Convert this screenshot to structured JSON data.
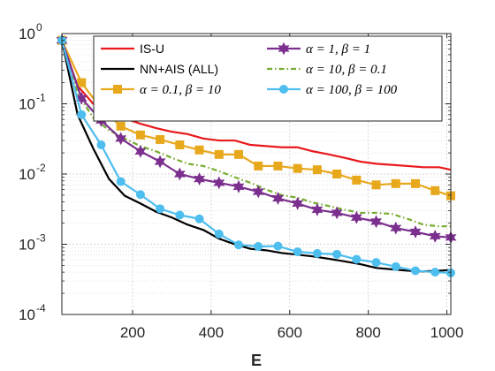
{
  "chart_data": {
    "type": "line",
    "title": "",
    "xlabel": "E",
    "ylabel": "",
    "y_scale": "log",
    "xlim": [
      20,
      1010
    ],
    "ylim": [
      0.0001,
      1
    ],
    "xticks": [
      200,
      400,
      600,
      800,
      1000
    ],
    "xtick_labels": [
      "200",
      "400",
      "600",
      "800",
      "1000"
    ],
    "yticks": [
      0.0001,
      0.001,
      0.01,
      0.1,
      1
    ],
    "ytick_labels": [
      {
        "base": "10",
        "exp": "-4"
      },
      {
        "base": "10",
        "exp": "-3"
      },
      {
        "base": "10",
        "exp": "-2"
      },
      {
        "base": "10",
        "exp": "-1"
      },
      {
        "base": "10",
        "exp": "0"
      }
    ],
    "grid": true,
    "legend_position": "top-right",
    "series": [
      {
        "name": "IS-U",
        "color": "#e8181c",
        "marker": "none",
        "x": [
          20,
          60,
          100,
          140,
          180,
          220,
          260,
          300,
          340,
          380,
          420,
          460,
          500,
          540,
          580,
          620,
          660,
          700,
          740,
          780,
          820,
          860,
          900,
          940,
          980,
          1010
        ],
        "y": [
          0.8,
          0.18,
          0.1,
          0.075,
          0.062,
          0.052,
          0.045,
          0.04,
          0.037,
          0.032,
          0.03,
          0.03,
          0.026,
          0.025,
          0.024,
          0.024,
          0.021,
          0.019,
          0.017,
          0.015,
          0.014,
          0.0135,
          0.013,
          0.0125,
          0.0125,
          0.0115
        ]
      },
      {
        "name": "NN+AIS (ALL)",
        "color": "#000000",
        "marker": "none",
        "x": [
          20,
          60,
          100,
          140,
          180,
          220,
          260,
          300,
          340,
          380,
          420,
          460,
          500,
          540,
          580,
          620,
          660,
          700,
          740,
          780,
          820,
          860,
          900,
          940,
          980,
          1010
        ],
        "y": [
          0.8,
          0.07,
          0.023,
          0.0085,
          0.0049,
          0.0038,
          0.0029,
          0.0024,
          0.0019,
          0.0016,
          0.0012,
          0.001,
          0.00086,
          0.00082,
          0.00075,
          0.00071,
          0.00067,
          0.00062,
          0.00057,
          0.00052,
          0.00046,
          0.00044,
          0.00042,
          0.00041,
          0.00042,
          0.00043
        ]
      },
      {
        "name": "α = 0.1, β = 10",
        "color": "#e8a81c",
        "marker": "square",
        "x": [
          20,
          70,
          120,
          170,
          220,
          270,
          320,
          370,
          420,
          470,
          520,
          570,
          620,
          670,
          720,
          770,
          820,
          870,
          920,
          970,
          1010
        ],
        "y": [
          0.8,
          0.2,
          0.085,
          0.048,
          0.036,
          0.031,
          0.026,
          0.022,
          0.019,
          0.019,
          0.013,
          0.013,
          0.012,
          0.0115,
          0.01,
          0.0082,
          0.007,
          0.0073,
          0.0073,
          0.0058,
          0.0049
        ]
      },
      {
        "name": "α = 1, β = 1",
        "color": "#7b2f8e",
        "marker": "hexagram",
        "x": [
          20,
          70,
          120,
          170,
          220,
          270,
          320,
          370,
          420,
          470,
          520,
          570,
          620,
          670,
          720,
          770,
          820,
          870,
          920,
          970,
          1010
        ],
        "y": [
          0.8,
          0.12,
          0.058,
          0.032,
          0.021,
          0.015,
          0.01,
          0.0085,
          0.0075,
          0.0066,
          0.0056,
          0.0045,
          0.0038,
          0.0031,
          0.0028,
          0.0024,
          0.0021,
          0.0017,
          0.0015,
          0.0013,
          0.00125
        ]
      },
      {
        "name": "α = 10, β = 0.1",
        "color": "#77ac30",
        "marker": "none",
        "dash": "dashdot",
        "x": [
          20,
          60,
          100,
          140,
          180,
          220,
          260,
          300,
          340,
          380,
          420,
          460,
          500,
          540,
          580,
          620,
          660,
          700,
          740,
          780,
          820,
          860,
          900,
          940,
          980,
          1010
        ],
        "y": [
          0.8,
          0.14,
          0.063,
          0.042,
          0.032,
          0.025,
          0.021,
          0.017,
          0.014,
          0.013,
          0.011,
          0.009,
          0.0075,
          0.006,
          0.005,
          0.0046,
          0.0039,
          0.0035,
          0.0031,
          0.0028,
          0.0028,
          0.0027,
          0.0023,
          0.0019,
          0.0018,
          0.0018
        ]
      },
      {
        "name": "α = 100, β = 100",
        "color": "#4dbeee",
        "marker": "circle",
        "x": [
          20,
          70,
          120,
          170,
          220,
          270,
          320,
          370,
          420,
          470,
          520,
          570,
          620,
          670,
          720,
          770,
          820,
          870,
          920,
          970,
          1010
        ],
        "y": [
          0.8,
          0.07,
          0.026,
          0.0078,
          0.0051,
          0.0032,
          0.0026,
          0.0023,
          0.0014,
          0.00098,
          0.00093,
          0.00094,
          0.00078,
          0.00074,
          0.00072,
          0.00061,
          0.00055,
          0.00048,
          0.00042,
          0.0004,
          0.00039
        ]
      }
    ]
  }
}
